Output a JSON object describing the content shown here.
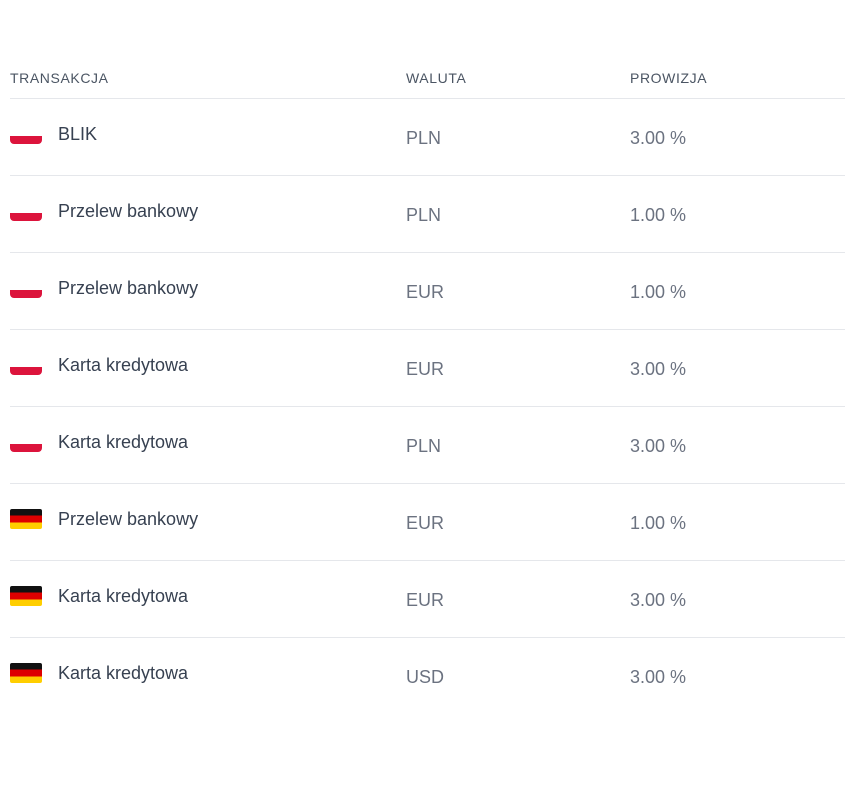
{
  "table": {
    "headers": {
      "transaction": "TRANSAKCJA",
      "currency": "WALUTA",
      "commission": "PROWIZJA"
    },
    "rows": [
      {
        "flag": "poland-flag-icon",
        "transaction": "BLIK",
        "currency": "PLN",
        "commission": "3.00 %"
      },
      {
        "flag": "poland-flag-icon",
        "transaction": "Przelew bankowy",
        "currency": "PLN",
        "commission": "1.00 %"
      },
      {
        "flag": "poland-flag-icon",
        "transaction": "Przelew bankowy",
        "currency": "EUR",
        "commission": "1.00 %"
      },
      {
        "flag": "poland-flag-icon",
        "transaction": "Karta kredytowa",
        "currency": "EUR",
        "commission": "3.00 %"
      },
      {
        "flag": "poland-flag-icon",
        "transaction": "Karta kredytowa",
        "currency": "PLN",
        "commission": "3.00 %"
      },
      {
        "flag": "germany-flag-icon",
        "transaction": "Przelew bankowy",
        "currency": "EUR",
        "commission": "1.00 %"
      },
      {
        "flag": "germany-flag-icon",
        "transaction": "Karta kredytowa",
        "currency": "EUR",
        "commission": "3.00 %"
      },
      {
        "flag": "germany-flag-icon",
        "transaction": "Karta kredytowa",
        "currency": "USD",
        "commission": "3.00 %"
      }
    ]
  },
  "colors": {
    "text_primary": "#374151",
    "text_secondary": "#6b7280",
    "divider": "#e5e7eb",
    "poland_red": "#dc143c",
    "germany_black": "#111111",
    "germany_red": "#dd0000",
    "germany_gold": "#ffce00"
  }
}
